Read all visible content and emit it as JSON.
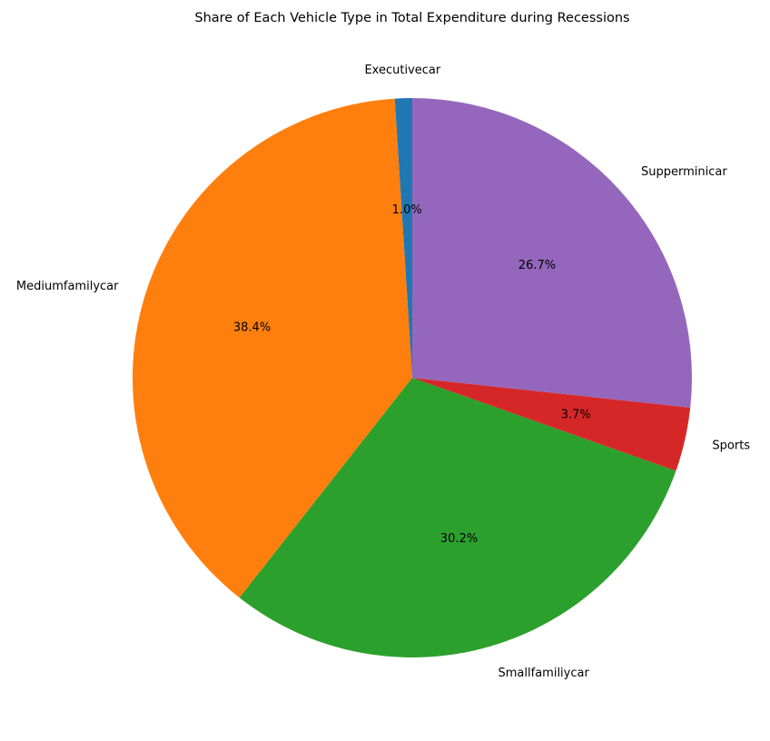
{
  "chart_data": {
    "type": "pie",
    "title": "Share of Each Vehicle Type in Total Expenditure during Recessions",
    "slices": [
      {
        "label": "Executivecar",
        "value": 1.0,
        "pct_label": "1.0%",
        "color": "#1f77b4"
      },
      {
        "label": "Mediumfamilycar",
        "value": 38.4,
        "pct_label": "38.4%",
        "color": "#ff7f0e"
      },
      {
        "label": "Smallfamiliycar",
        "value": 30.2,
        "pct_label": "30.2%",
        "color": "#2ca02c"
      },
      {
        "label": "Sports",
        "value": 3.7,
        "pct_label": "3.7%",
        "color": "#d62728"
      },
      {
        "label": "Supperminicar",
        "value": 26.7,
        "pct_label": "26.7%",
        "color": "#9467bd"
      }
    ],
    "start_angle_deg": 90,
    "direction": "counterclockwise",
    "legend": "none"
  }
}
